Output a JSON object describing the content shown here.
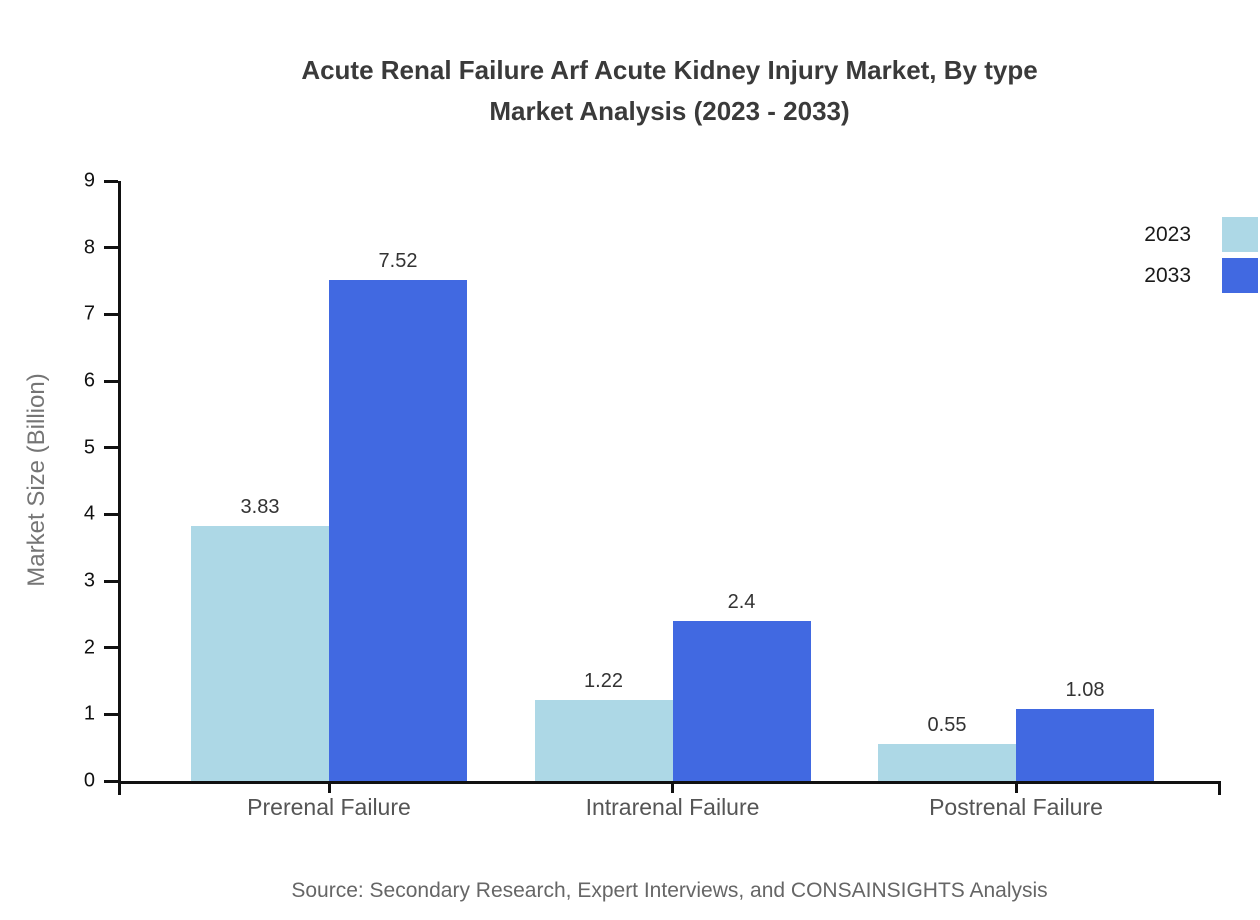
{
  "title": {
    "line1": "Acute Renal Failure Arf Acute Kidney Injury Market, By type",
    "line2": "Market Analysis (2023 - 2033)"
  },
  "source_text": "Source: Secondary Research, Expert Interviews, and CONSAINSIGHTS Analysis",
  "colors": {
    "series_2023": "#ADD8E6",
    "series_2033": "#4169E1",
    "axis": "#111111",
    "title_text": "#3a3a3a",
    "category_text": "#555555",
    "muted_text": "#666666",
    "ylabel_text": "#757575",
    "background": "#ffffff"
  },
  "chart_data": {
    "type": "bar",
    "title": "Acute Renal Failure Arf Acute Kidney Injury Market, By type Market Analysis (2023 - 2033)",
    "categories": [
      "Prerenal Failure",
      "Intrarenal Failure",
      "Postrenal Failure"
    ],
    "series": [
      {
        "name": "2023",
        "color": "#ADD8E6",
        "values": [
          3.83,
          1.22,
          0.55
        ]
      },
      {
        "name": "2033",
        "color": "#4169E1",
        "values": [
          7.52,
          2.4,
          1.08
        ]
      }
    ],
    "value_labels": [
      [
        "3.83",
        "1.22",
        "0.55"
      ],
      [
        "7.52",
        "2.4",
        "1.08"
      ]
    ],
    "xlabel": "",
    "ylabel": "Market Size (Billion)",
    "ylim": [
      0,
      9
    ],
    "yticks": [
      0,
      1,
      2,
      3,
      4,
      5,
      6,
      7,
      8,
      9
    ],
    "grid": false,
    "legend_position": "top-right",
    "bar_value_labels_shown": true
  }
}
